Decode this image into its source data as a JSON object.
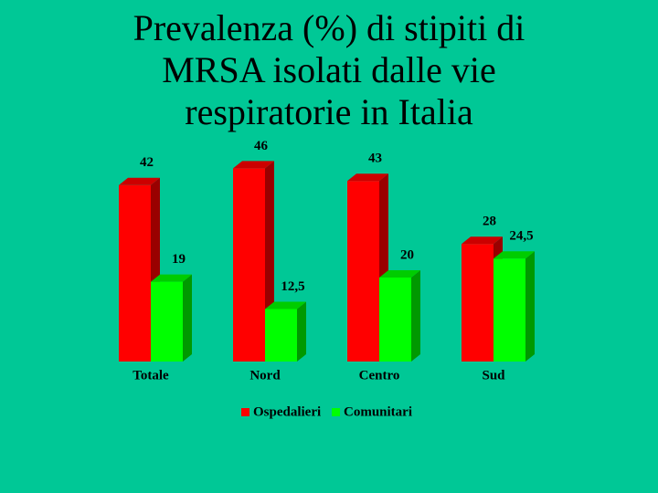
{
  "chart_data": {
    "type": "bar3d",
    "title": "Prevalenza (%) di stipiti di MRSA isolati dalle vie respiratorie in Italia",
    "categories": [
      "Totale",
      "Nord",
      "Centro",
      "Sud"
    ],
    "series": [
      {
        "name": "Ospedalieri",
        "color": "#ff0000",
        "values": [
          42,
          46,
          43,
          28
        ]
      },
      {
        "name": "Comunitari",
        "color": "#00ff00",
        "values": [
          19,
          12.5,
          20,
          24.5
        ],
        "value_labels": [
          "19",
          "12,5",
          "20",
          "24,5"
        ]
      }
    ]
  }
}
